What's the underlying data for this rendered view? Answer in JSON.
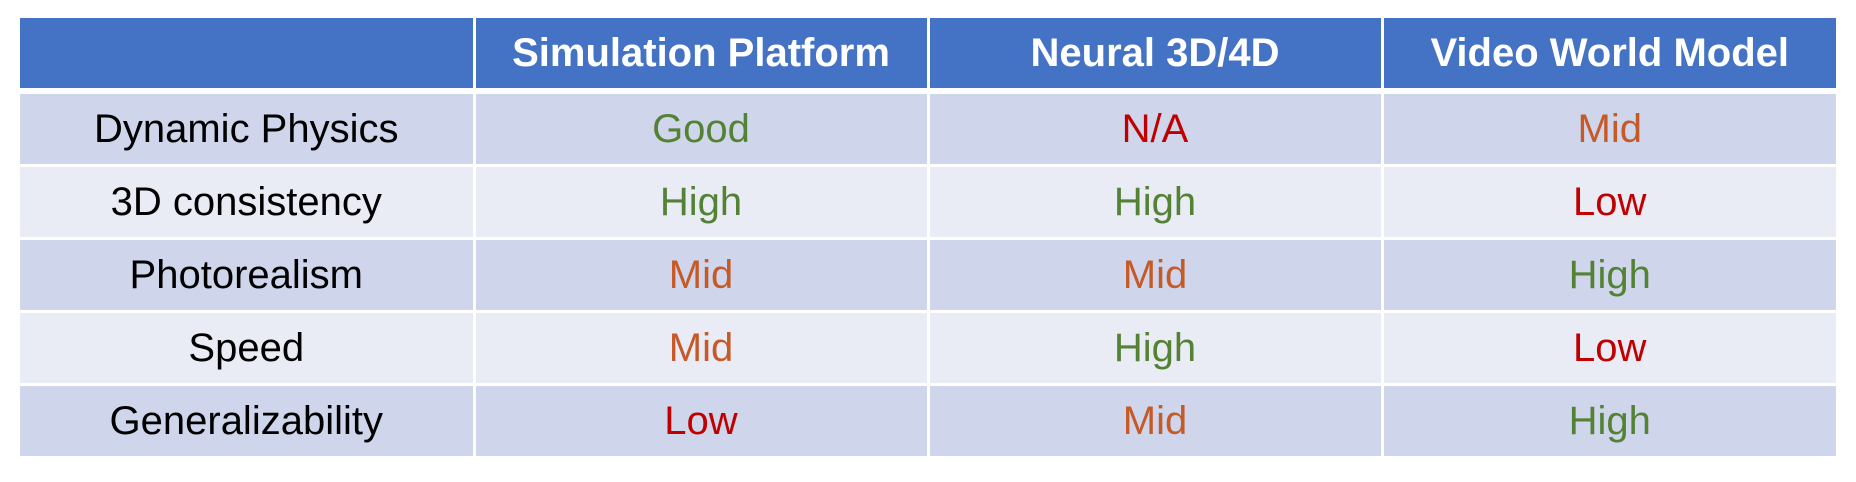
{
  "chart_data": {
    "type": "table",
    "columns": [
      "",
      "Simulation Platform",
      "Neural 3D/4D",
      "Video World Model"
    ],
    "rows": [
      {
        "label": "Dynamic Physics",
        "values": [
          "Good",
          "N/A",
          "Mid"
        ]
      },
      {
        "label": "3D consistency",
        "values": [
          "High",
          "High",
          "Low"
        ]
      },
      {
        "label": "Photorealism",
        "values": [
          "Mid",
          "Mid",
          "High"
        ]
      },
      {
        "label": "Speed",
        "values": [
          "Mid",
          "High",
          "Low"
        ]
      },
      {
        "label": "Generalizability",
        "values": [
          "Low",
          "Mid",
          "High"
        ]
      }
    ]
  },
  "colors": {
    "header_bg": "#4472c4",
    "header_text": "#ffffff",
    "row_odd_bg": "#cfd5ea",
    "row_even_bg": "#e9ebf5",
    "value_colors": {
      "Good": "#548235",
      "High": "#548235",
      "Mid": "#c55a28",
      "Low": "#c00000",
      "N/A": "#c00000"
    }
  }
}
